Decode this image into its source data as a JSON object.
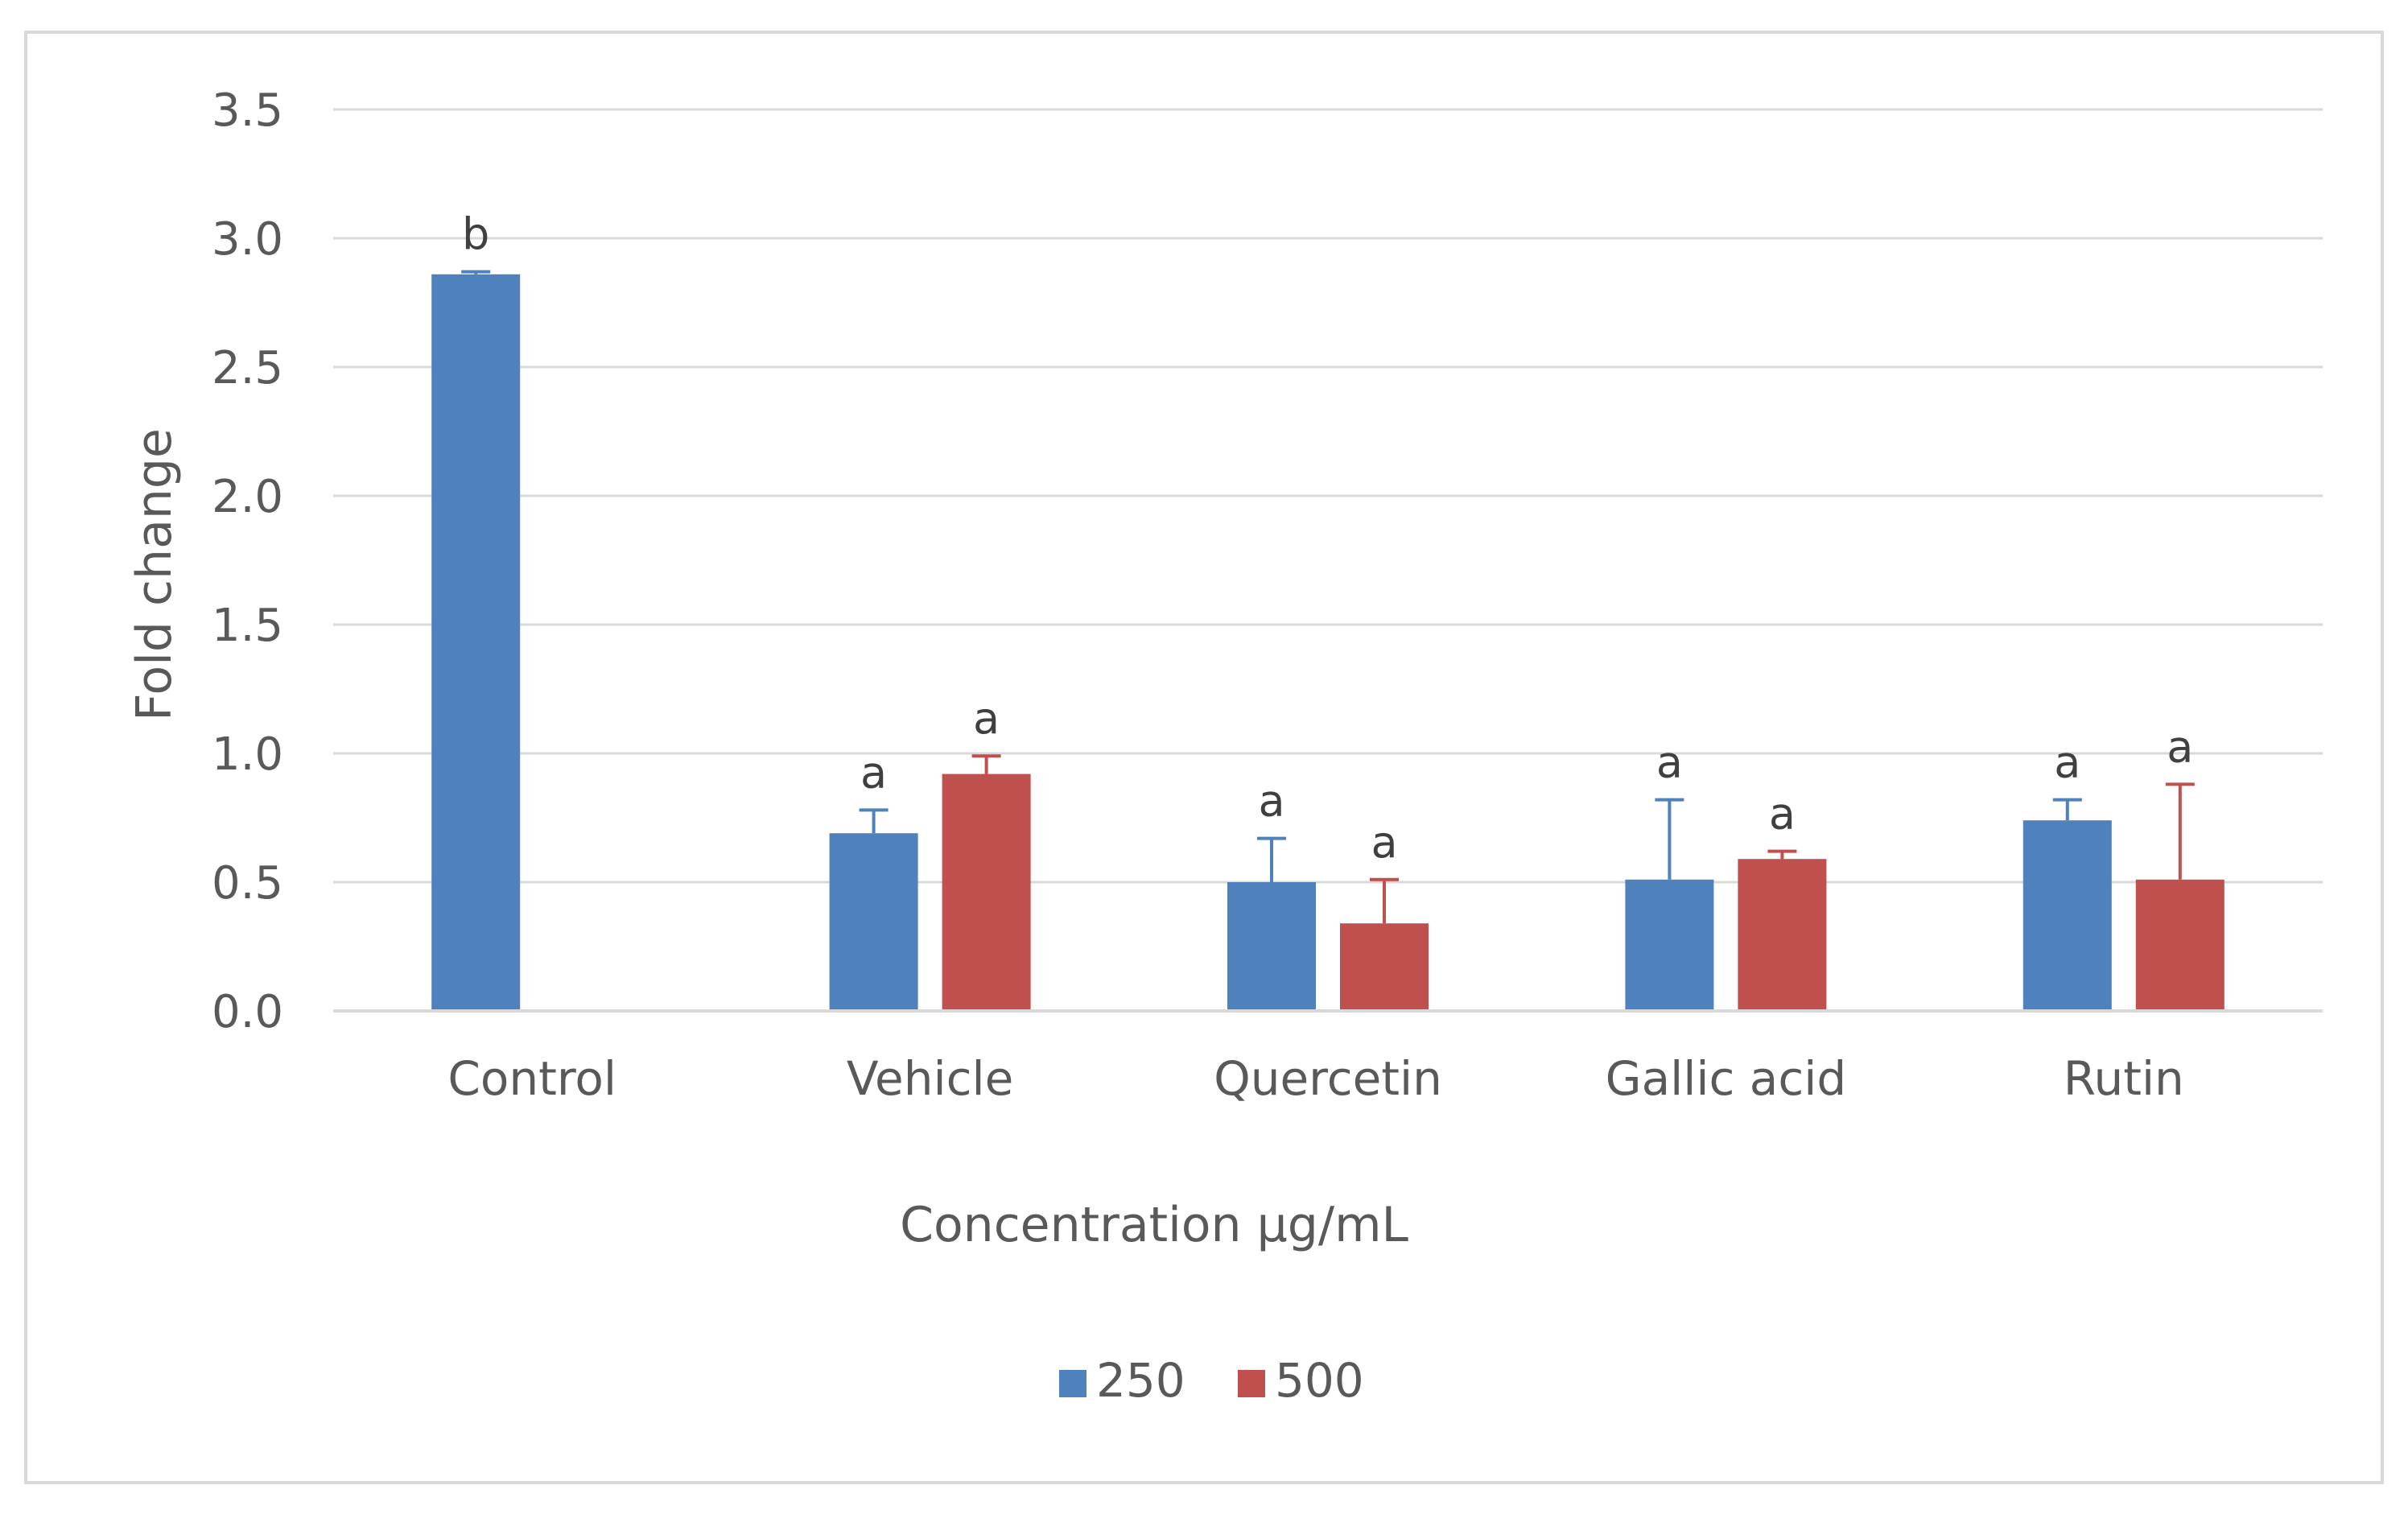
{
  "chart_data": {
    "type": "bar",
    "title": "",
    "xlabel": "Concentration µg/mL",
    "ylabel": "Fold change",
    "ylim": [
      0,
      3.5
    ],
    "yticks": [
      "0.0",
      "0.5",
      "1.0",
      "1.5",
      "2.0",
      "2.5",
      "3.0",
      "3.5"
    ],
    "ytick_values": [
      0,
      0.5,
      1.0,
      1.5,
      2.0,
      2.5,
      3.0,
      3.5
    ],
    "grid": true,
    "legend_position": "bottom-center",
    "categories": [
      "Control",
      "Vehicle",
      "Quercetin",
      "Gallic acid",
      "Rutin"
    ],
    "series": [
      {
        "name": "250",
        "color": "#4f81bd",
        "values": [
          2.86,
          0.69,
          0.5,
          0.51,
          0.74
        ],
        "errors": [
          0.01,
          0.09,
          0.17,
          0.31,
          0.08
        ],
        "labels": [
          "b",
          "a",
          "a",
          "a",
          "a"
        ]
      },
      {
        "name": "500",
        "color": "#c0504d",
        "values": [
          null,
          0.92,
          0.34,
          0.59,
          0.51
        ],
        "errors": [
          null,
          0.07,
          0.17,
          0.03,
          0.37
        ],
        "labels": [
          "",
          "a",
          "a",
          "a",
          "a"
        ]
      }
    ]
  }
}
